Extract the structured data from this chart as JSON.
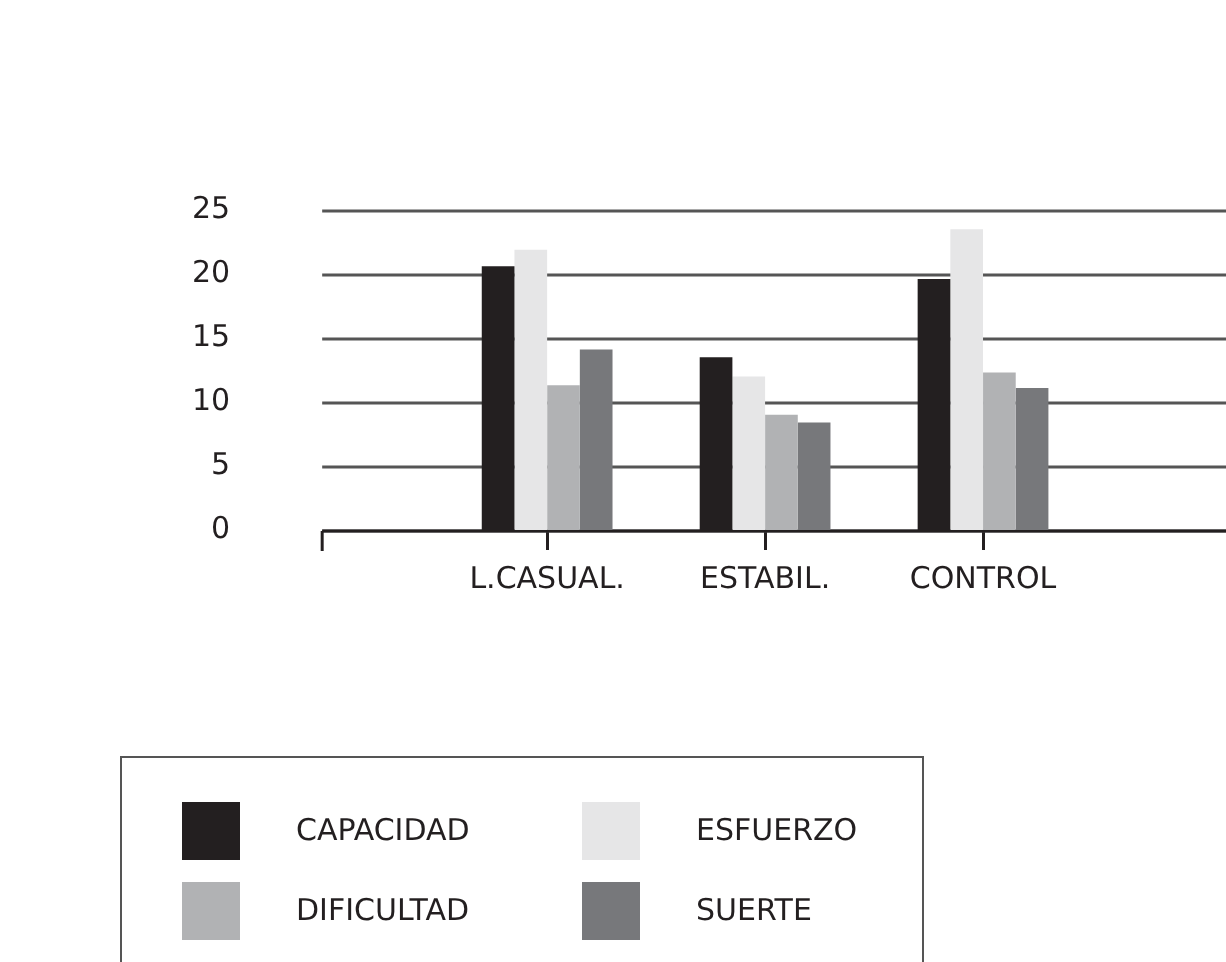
{
  "chart_data": {
    "type": "bar",
    "categories": [
      "L.CASUAL.",
      "ESTABIL.",
      "CONTROL"
    ],
    "series": [
      {
        "name": "CAPACIDAD",
        "color": "#231f20",
        "values": [
          20.6,
          13.5,
          19.6
        ]
      },
      {
        "name": "ESFUERZO",
        "color": "#e6e6e7",
        "values": [
          21.9,
          12.0,
          23.5
        ]
      },
      {
        "name": "DIFICULTAD",
        "color": "#b1b2b4",
        "values": [
          11.3,
          9.0,
          12.3
        ]
      },
      {
        "name": "SUERTE",
        "color": "#77787b",
        "values": [
          14.1,
          8.4,
          11.1
        ]
      }
    ],
    "ylim": [
      0,
      25
    ],
    "yticks": [
      0,
      5,
      10,
      15,
      20,
      25
    ],
    "grid": "y",
    "legend": "bottom"
  }
}
